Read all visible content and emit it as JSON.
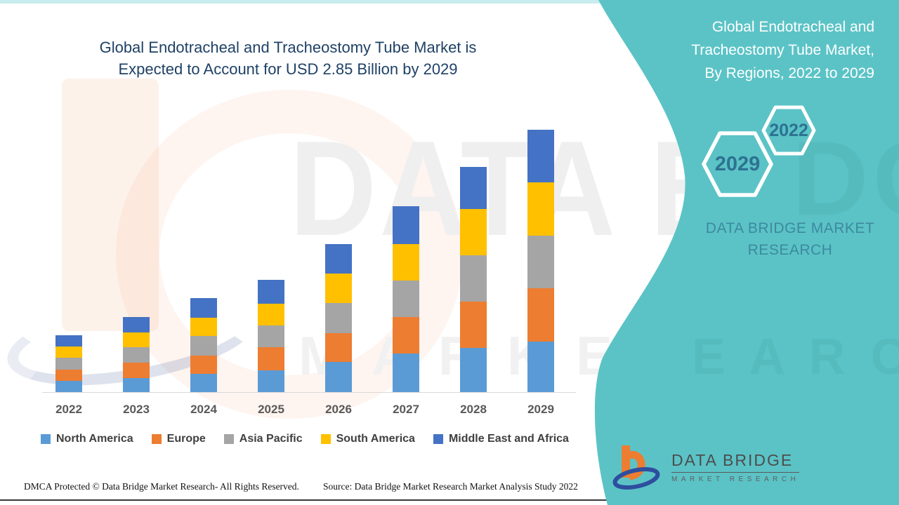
{
  "title": {
    "line1": "Global Endotracheal and Tracheostomy Tube Market is",
    "line2": "Expected to Account for USD 2.85 Billion by 2029"
  },
  "chart_data": {
    "type": "bar",
    "stacked": true,
    "title": "Global Endotracheal and Tracheostomy Tube Market is Expected to Account for USD 2.85 Billion by 2029",
    "unit": "USD Billion",
    "categories": [
      "2022",
      "2023",
      "2024",
      "2025",
      "2026",
      "2027",
      "2028",
      "2029"
    ],
    "series": [
      {
        "name": "North America",
        "color": "#5B9BD5",
        "values": [
          0.12,
          0.15,
          0.2,
          0.24,
          0.33,
          0.42,
          0.48,
          0.55
        ]
      },
      {
        "name": "Europe",
        "color": "#ED7D31",
        "values": [
          0.12,
          0.17,
          0.2,
          0.25,
          0.31,
          0.4,
          0.5,
          0.58
        ]
      },
      {
        "name": "Asia Pacific",
        "color": "#A5A5A5",
        "values": [
          0.13,
          0.17,
          0.21,
          0.24,
          0.33,
          0.4,
          0.5,
          0.57
        ]
      },
      {
        "name": "South America",
        "color": "#FFC000",
        "values": [
          0.12,
          0.16,
          0.2,
          0.24,
          0.32,
          0.4,
          0.5,
          0.58
        ]
      },
      {
        "name": "Middle East and Africa",
        "color": "#4472C4",
        "values": [
          0.12,
          0.17,
          0.21,
          0.26,
          0.32,
          0.41,
          0.46,
          0.57
        ]
      }
    ],
    "totals_estimated": [
      0.61,
      0.82,
      1.02,
      1.23,
      1.61,
      2.03,
      2.44,
      2.85
    ],
    "ylim": [
      0,
      2.9
    ],
    "grid": false,
    "y_axis_shown": false,
    "legend_position": "bottom",
    "note": "No y-axis shown in source; segment values estimated from bar heights scaled to 2.85B total in 2029."
  },
  "panel": {
    "bg_color": "#5BC3C6",
    "heading_line1": "Global Endotracheal and",
    "heading_line2": "Tracheostomy Tube Market,",
    "heading_line3": "By Regions, 2022 to 2029",
    "hex_small_label": "2022",
    "hex_large_label": "2029",
    "brand_line1": "DATA BRIDGE MARKET",
    "brand_line2": "RESEARCH",
    "logo_title": "DATA BRIDGE",
    "logo_sub": "MARKET RESEARCH"
  },
  "footer": {
    "left": "DMCA Protected © Data Bridge Market Research- All Rights Reserved.",
    "right": "Source: Data Bridge Market Research Market Analysis Study 2022"
  },
  "watermark": {
    "row1": "DATA BRI",
    "row2": "M A R K E T",
    "panel_row1": "DGE",
    "panel_row2": "E A R C H"
  },
  "colors": {
    "title_text": "#1F4166",
    "teal_panel": "#5BC3C6",
    "hex_text": "#2D7291",
    "panel_brand_text": "#3D89A0",
    "axis_label": "#595959",
    "legend_label": "#3f3f3f"
  }
}
